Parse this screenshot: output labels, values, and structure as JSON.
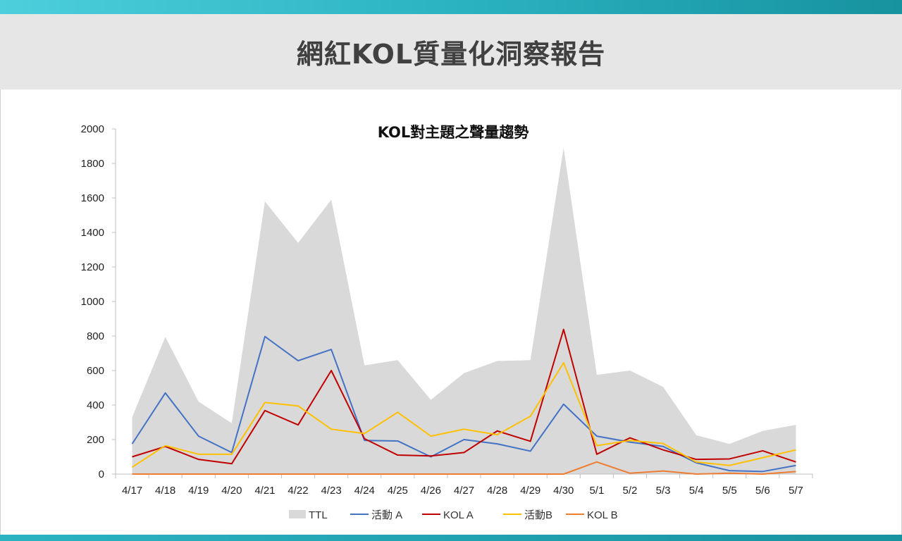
{
  "page": {
    "title": "網紅KOL質量化洞察報告"
  },
  "colors": {
    "top_bar": "#2bb3c2",
    "title_band": "#e6e6e6",
    "ttl": "#d9d9d9",
    "activity_a": "#4472c4",
    "kol_a": "#c00000",
    "activity_b": "#ffc000",
    "kol_b": "#ed7d31"
  },
  "chart_data": {
    "type": "area",
    "title": "KOL對主題之聲量趨勢",
    "xlabel": "",
    "ylabel": "",
    "ylim": [
      0,
      2000
    ],
    "yticks": [
      0,
      200,
      400,
      600,
      800,
      1000,
      1200,
      1400,
      1600,
      1800,
      2000
    ],
    "categories": [
      "4/17",
      "4/18",
      "4/19",
      "4/20",
      "4/21",
      "4/22",
      "4/23",
      "4/24",
      "4/25",
      "4/26",
      "4/27",
      "4/28",
      "4/29",
      "4/30",
      "5/1",
      "5/2",
      "5/3",
      "5/4",
      "5/5",
      "5/6",
      "5/7"
    ],
    "legend_position": "bottom",
    "grid": false,
    "series": [
      {
        "name": "TTL",
        "kind": "area",
        "color": "#d9d9d9",
        "values": [
          330,
          795,
          420,
          295,
          1580,
          1340,
          1590,
          630,
          660,
          430,
          585,
          655,
          660,
          1890,
          575,
          600,
          505,
          225,
          175,
          250,
          285
        ]
      },
      {
        "name": "活動 A",
        "kind": "line",
        "color": "#4472c4",
        "values": [
          175,
          470,
          220,
          125,
          797,
          657,
          722,
          195,
          192,
          100,
          200,
          175,
          133,
          405,
          220,
          185,
          160,
          65,
          20,
          15,
          50
        ]
      },
      {
        "name": "KOL A",
        "kind": "line",
        "color": "#c00000",
        "values": [
          100,
          160,
          85,
          60,
          368,
          285,
          600,
          205,
          110,
          105,
          125,
          250,
          190,
          838,
          115,
          210,
          140,
          85,
          88,
          135,
          70
        ]
      },
      {
        "name": "活動B",
        "kind": "line",
        "color": "#ffc000",
        "values": [
          40,
          165,
          115,
          115,
          415,
          395,
          260,
          235,
          358,
          220,
          260,
          228,
          335,
          645,
          165,
          195,
          177,
          70,
          50,
          95,
          140
        ]
      },
      {
        "name": "KOL B",
        "kind": "line",
        "color": "#ed7d31",
        "values": [
          0,
          0,
          0,
          0,
          0,
          0,
          0,
          0,
          0,
          0,
          0,
          0,
          0,
          0,
          70,
          5,
          18,
          0,
          5,
          0,
          15
        ]
      }
    ]
  }
}
